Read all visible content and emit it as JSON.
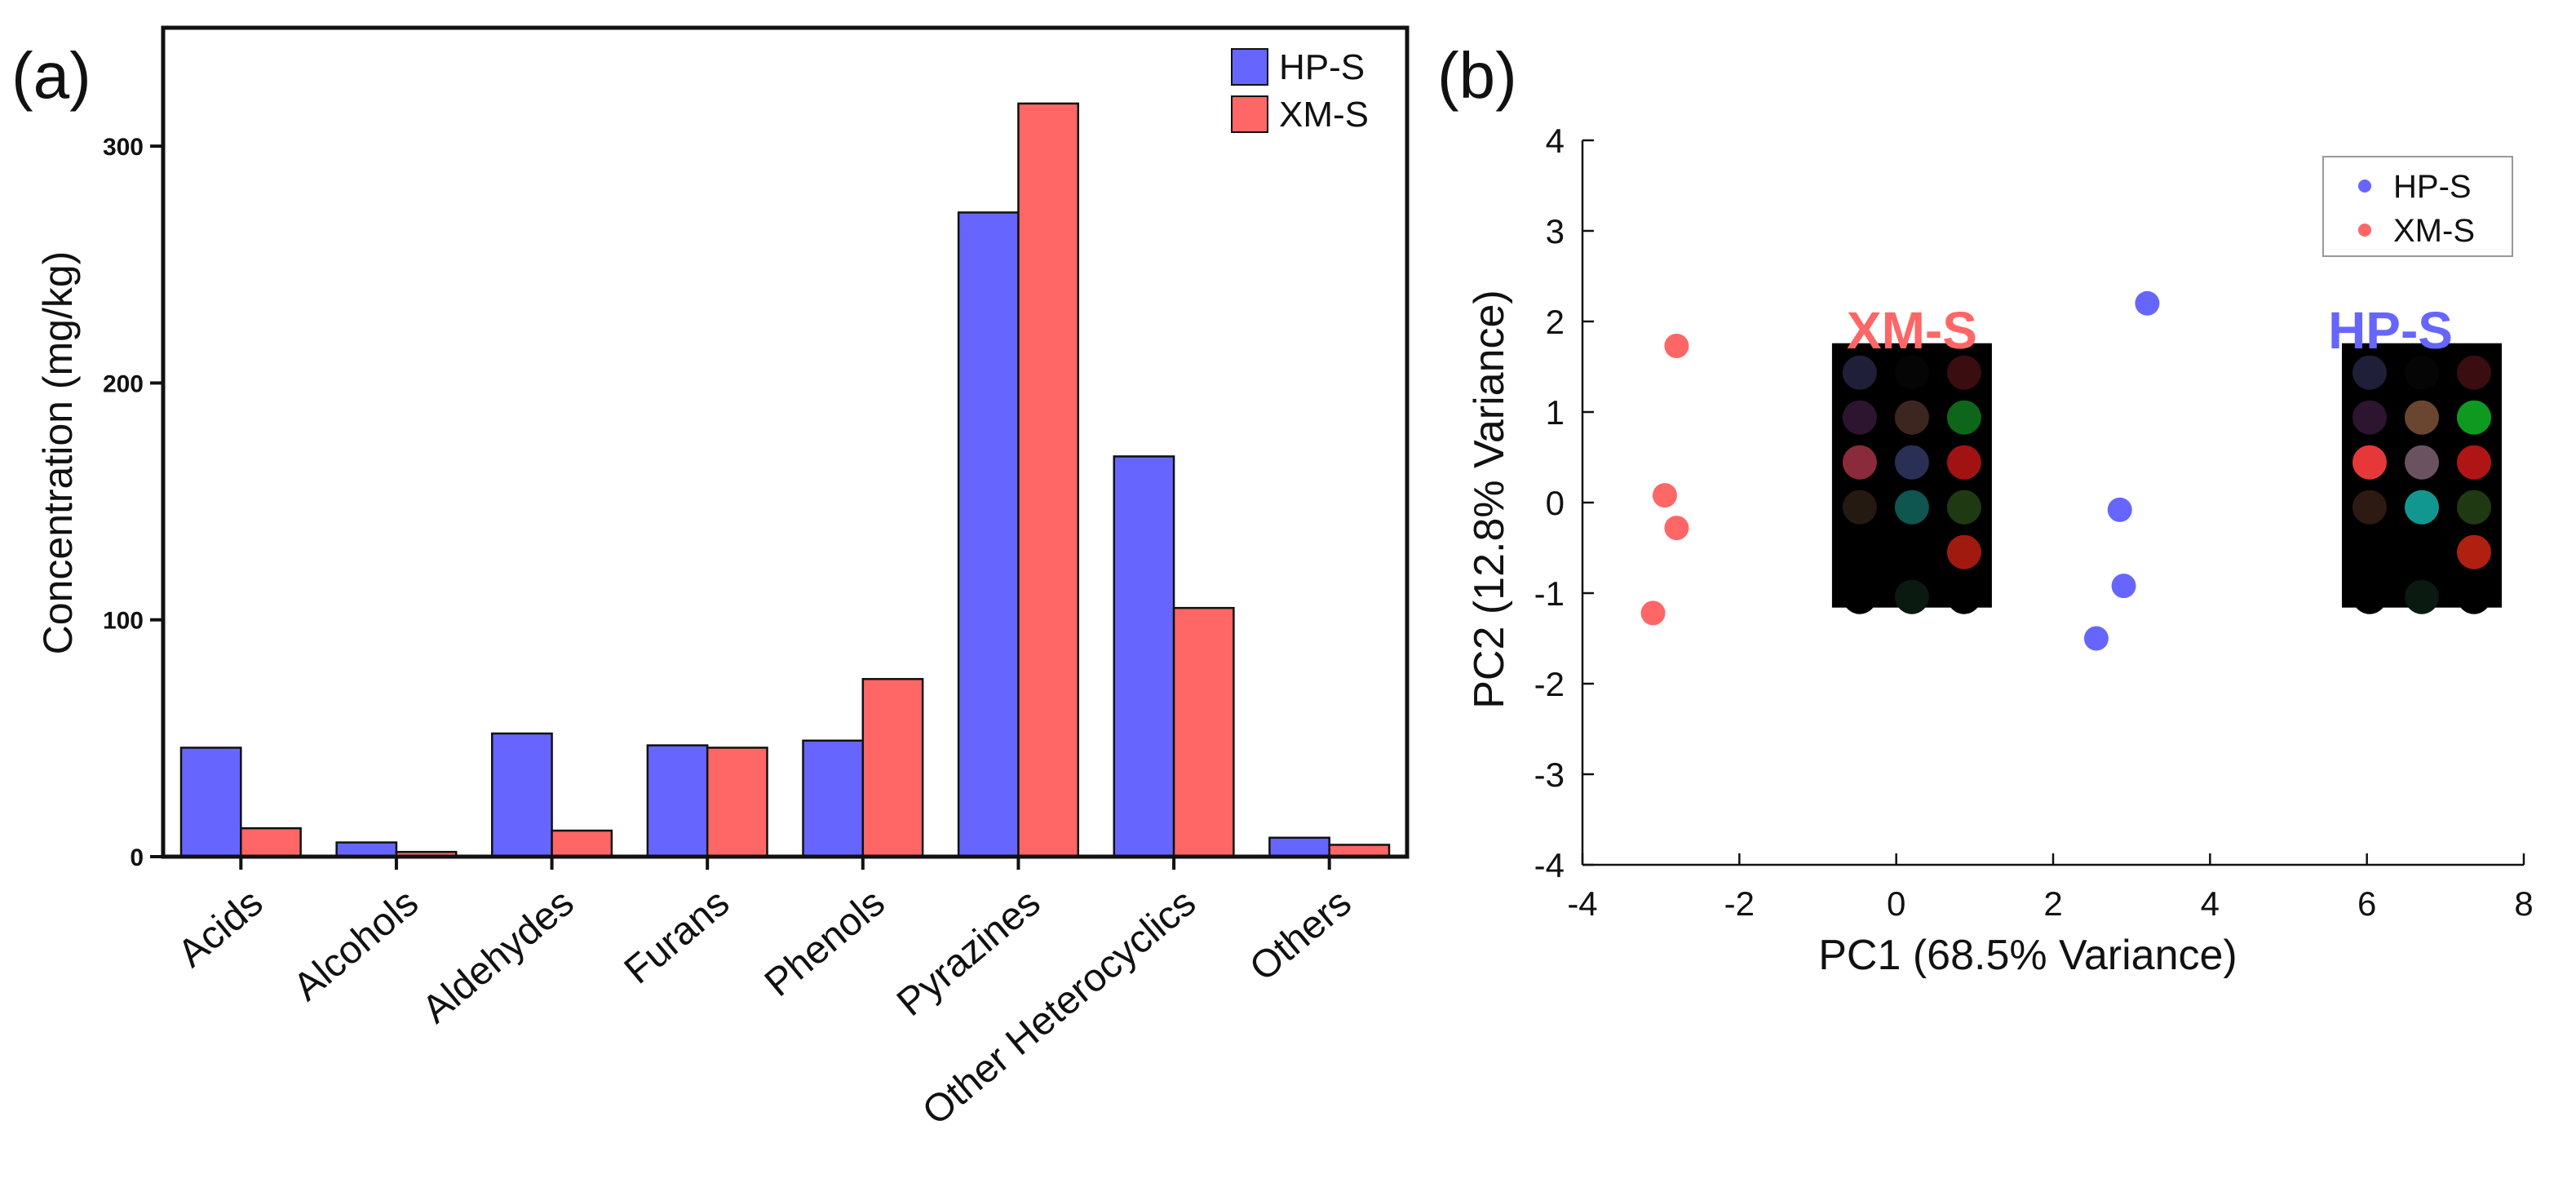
{
  "panels": {
    "a": "(a)",
    "b": "(b)"
  },
  "colors": {
    "hp": "#6666ff",
    "xm": "#ff6666",
    "axis": "#111111",
    "swatch_bg": "#000000"
  },
  "chart_data": [
    {
      "type": "bar",
      "panel": "(a)",
      "ylabel": "Concentration (mg/kg)",
      "xlabel": "",
      "ylim": [
        0,
        350
      ],
      "yticks": [
        0,
        100,
        200,
        300
      ],
      "ytick_labels": [
        "0",
        "100",
        "200",
        "300"
      ],
      "categories": [
        "Acids",
        "Alcohols",
        "Aldehydes",
        "Furans",
        "Phenols",
        "Pyrazines",
        "Other Heterocyclics",
        "Others"
      ],
      "series": [
        {
          "name": "HP-S",
          "values": [
            46,
            6,
            52,
            47,
            49,
            272,
            169,
            8
          ]
        },
        {
          "name": "XM-S",
          "values": [
            12,
            2,
            11,
            46,
            75,
            318,
            105,
            5
          ]
        }
      ],
      "legend": "top-right"
    },
    {
      "type": "scatter",
      "panel": "(b)",
      "xlabel": "PC1 (68.5% Variance)",
      "ylabel": "PC2 (12.8% Variance)",
      "xlim": [
        -4,
        8
      ],
      "ylim": [
        -4,
        4
      ],
      "xticks": [
        -4,
        -2,
        0,
        2,
        4,
        6,
        8
      ],
      "xtick_labels": [
        "-4",
        "-2",
        "0",
        "2",
        "4",
        "6",
        "8"
      ],
      "yticks": [
        -4,
        -3,
        -2,
        -1,
        0,
        1,
        2,
        3,
        4
      ],
      "ytick_labels": [
        "-4",
        "-3",
        "-2",
        "-1",
        "0",
        "1",
        "2",
        "3",
        "4"
      ],
      "series": [
        {
          "name": "HP-S",
          "x": [
            3.2,
            2.85,
            2.9,
            2.55
          ],
          "y": [
            2.2,
            -0.08,
            -0.92,
            -1.5
          ]
        },
        {
          "name": "XM-S",
          "x": [
            -2.8,
            -2.95,
            -2.8,
            -3.1
          ],
          "y": [
            1.73,
            0.08,
            -0.28,
            -1.22
          ]
        }
      ],
      "legend": "top-right",
      "annotations": [
        {
          "label": "XM-S",
          "x": 0.2,
          "y": 1.9
        },
        {
          "label": "HP-S",
          "x": 6.3,
          "y": 1.9
        }
      ],
      "swatches": [
        {
          "name": "XM-S",
          "cx": 0.2,
          "cy": 0.3,
          "colors": [
            "#1f1f3a",
            "#050505",
            "#3a0d10",
            "#2d1530",
            "#3d2620",
            "#0d6619",
            "#8a2a3a",
            "#2a2f55",
            "#a11212",
            "#241a12",
            "#0f5550",
            "#1f3a12",
            "#000000",
            "#000000",
            "#a11a10",
            "#000000",
            "#0a1a10",
            "#000000"
          ]
        },
        {
          "name": "HP-S",
          "cx": 6.7,
          "cy": 0.3,
          "colors": [
            "#1f1f3a",
            "#050505",
            "#3a0d10",
            "#2d1530",
            "#6a4530",
            "#0e9920",
            "#e63838",
            "#6a5260",
            "#b01515",
            "#2d1a12",
            "#129790",
            "#1f3a12",
            "#000000",
            "#000000",
            "#b02010",
            "#000000",
            "#0a1a10",
            "#000000"
          ]
        }
      ]
    }
  ]
}
